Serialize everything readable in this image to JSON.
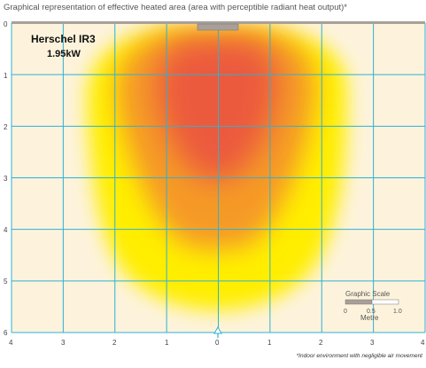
{
  "header": {
    "title": "Graphical representation of effective heated area (area with perceptible radiant heat output)*"
  },
  "heater": {
    "model": "Herschel IR3",
    "power": "1.95kW"
  },
  "axes": {
    "y_ticks": [
      "0",
      "1",
      "2",
      "3",
      "4",
      "5",
      "6"
    ],
    "x_ticks": [
      "4",
      "3",
      "2",
      "1",
      "0",
      "1",
      "2",
      "3",
      "4"
    ]
  },
  "scale": {
    "title": "Graphic Scale",
    "ticks": [
      "0",
      "0.5",
      "1.0"
    ],
    "unit": "Metre"
  },
  "footnote": "*Indoor environment with negligible air movement",
  "colors": {
    "background": "#fdf3dc",
    "grid": "#2eb0d6",
    "core": "#ec5a3c",
    "mid": "#f59a28",
    "outer": "#ffee00",
    "heater_bar": "#a8a098"
  }
}
